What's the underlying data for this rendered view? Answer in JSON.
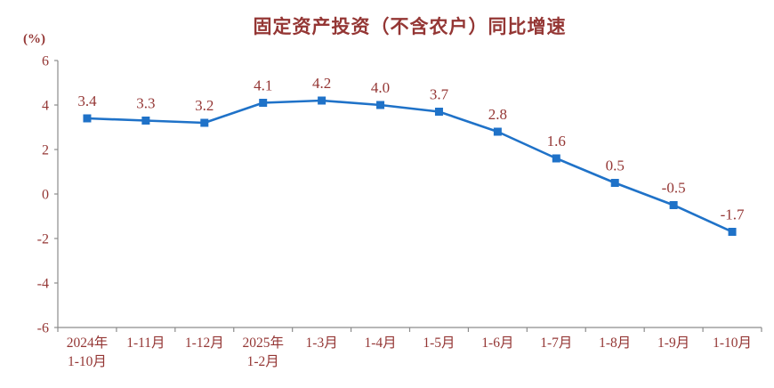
{
  "title": "固定资产投资（不含农户）同比增速",
  "unit_label": "(%)",
  "colors": {
    "text": "#943634",
    "line": "#1F72C8",
    "marker": "#1F72C8",
    "axis": "#8c8c8c"
  },
  "chart_data": {
    "type": "line",
    "title": "固定资产投资（不含农户）同比增速",
    "ylabel": "(%)",
    "xlabel": "",
    "categories": [
      "2024年\n1-10月",
      "1-11月",
      "1-12月",
      "2025年\n1-2月",
      "1-3月",
      "1-4月",
      "1-5月",
      "1-6月",
      "1-7月",
      "1-8月",
      "1-9月",
      "1-10月"
    ],
    "values": [
      3.4,
      3.3,
      3.2,
      4.1,
      4.2,
      4.0,
      3.7,
      2.8,
      1.6,
      0.5,
      -0.5,
      -1.7
    ],
    "data_labels": [
      "3.4",
      "3.3",
      "3.2",
      "4.1",
      "4.2",
      "4.0",
      "3.7",
      "2.8",
      "1.6",
      "0.5",
      "-0.5",
      "-1.7"
    ],
    "ylim": [
      -6,
      6
    ],
    "yticks": [
      6,
      4,
      2,
      0,
      -2,
      -4,
      -6
    ],
    "grid": false,
    "legend": "none",
    "marker": "square"
  }
}
